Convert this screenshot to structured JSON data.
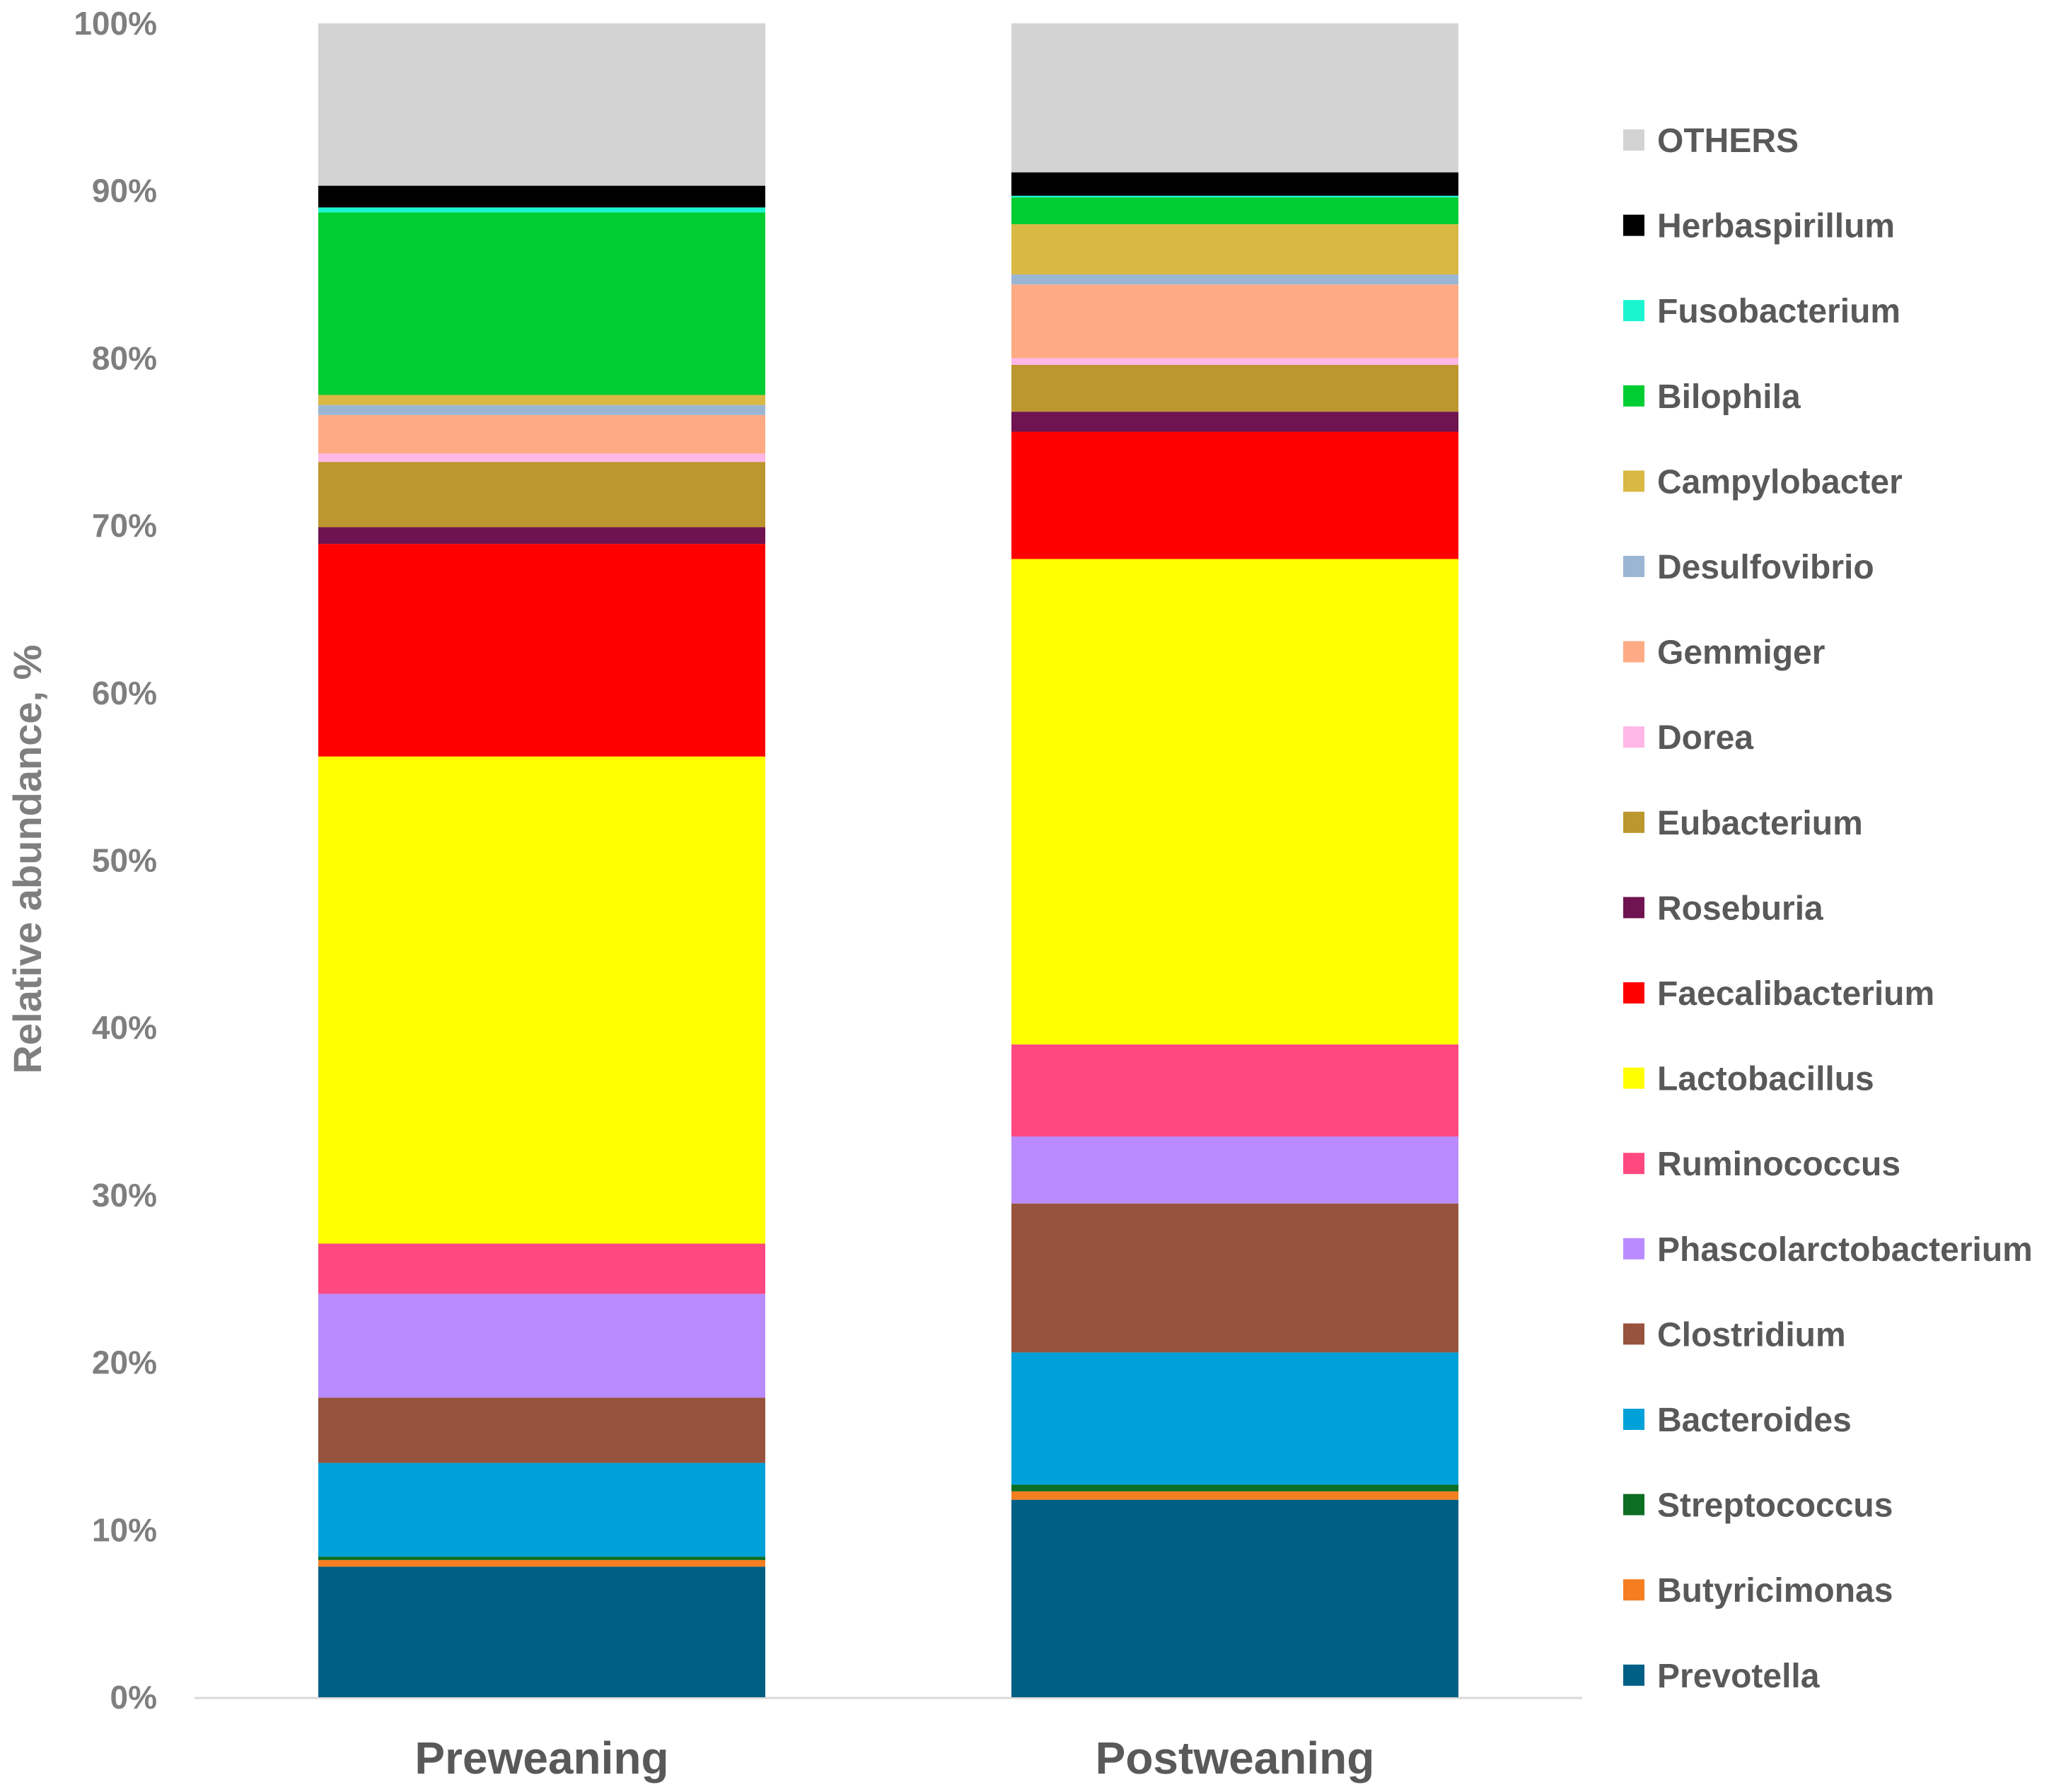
{
  "chart_data": {
    "type": "bar",
    "stacked": true,
    "title": "",
    "xlabel": "",
    "ylabel": "Relative abundance, %",
    "ylim": [
      0,
      100
    ],
    "y_ticks": [
      "0%",
      "10%",
      "20%",
      "30%",
      "40%",
      "50%",
      "60%",
      "70%",
      "80%",
      "90%",
      "100%"
    ],
    "categories": [
      "Preweaning",
      "Postweaning"
    ],
    "legend_position": "right",
    "series": [
      {
        "name": "Prevotella",
        "color": "#005F85",
        "values": [
          7.8,
          11.8
        ]
      },
      {
        "name": "Butyricimonas",
        "color": "#F47E20",
        "values": [
          0.4,
          0.5
        ]
      },
      {
        "name": "Streptococcus",
        "color": "#0B6E23",
        "values": [
          0.2,
          0.4
        ]
      },
      {
        "name": "Bacteroides",
        "color": "#00A1D9",
        "values": [
          5.6,
          7.9
        ]
      },
      {
        "name": "Clostridium",
        "color": "#97533D",
        "values": [
          3.9,
          8.9
        ]
      },
      {
        "name": "Phascolarctobacterium",
        "color": "#B98BFF",
        "values": [
          6.2,
          4.0
        ]
      },
      {
        "name": "Ruminococcus",
        "color": "#FF4880",
        "values": [
          3.0,
          5.5
        ]
      },
      {
        "name": "Lactobacillus",
        "color": "#FFFF00",
        "values": [
          29.1,
          29.0
        ]
      },
      {
        "name": "Faecalibacterium",
        "color": "#FF0000",
        "values": [
          12.7,
          7.6
        ]
      },
      {
        "name": "Roseburia",
        "color": "#6F1351",
        "values": [
          1.0,
          1.2
        ]
      },
      {
        "name": "Eubacterium",
        "color": "#BC962E",
        "values": [
          3.9,
          2.8
        ]
      },
      {
        "name": "Dorea",
        "color": "#FFB7E7",
        "values": [
          0.5,
          0.4
        ]
      },
      {
        "name": "Gemmiger",
        "color": "#FEAA85",
        "values": [
          2.3,
          4.4
        ]
      },
      {
        "name": "Desulfovibrio",
        "color": "#9BB6D2",
        "values": [
          0.6,
          0.6
        ]
      },
      {
        "name": "Campylobacter",
        "color": "#D9B843",
        "values": [
          0.6,
          3.0
        ]
      },
      {
        "name": "Bilophila",
        "color": "#00CD32",
        "values": [
          10.9,
          1.6
        ]
      },
      {
        "name": "Fusobacterium",
        "color": "#1AF5D0",
        "values": [
          0.3,
          0.1
        ]
      },
      {
        "name": "Herbaspirillum",
        "color": "#000000",
        "values": [
          1.3,
          1.4
        ]
      },
      {
        "name": "OTHERS",
        "color": "#D3D3D3",
        "values": [
          9.7,
          8.9
        ]
      }
    ]
  }
}
